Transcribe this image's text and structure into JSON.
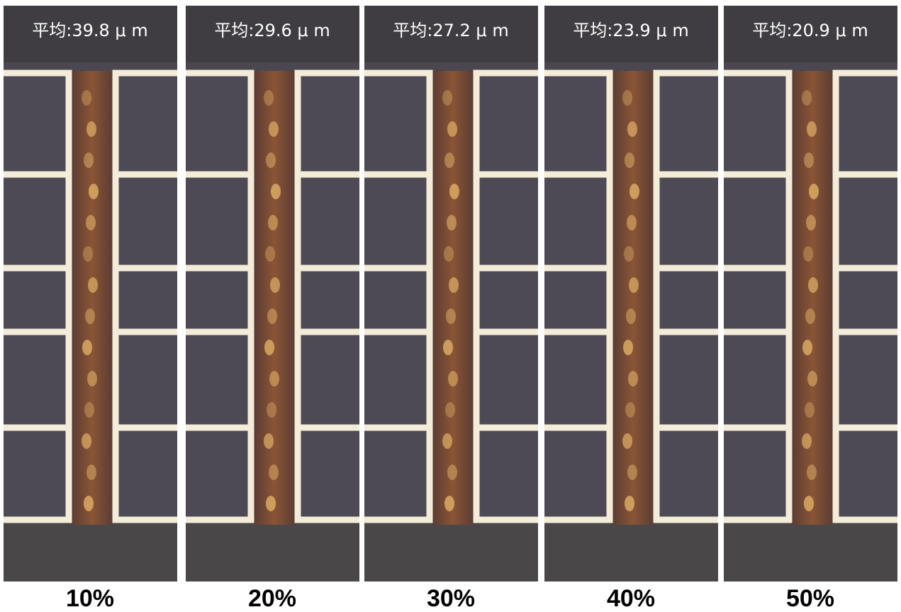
{
  "panels": [
    {
      "average": "平均:39.8 μ m",
      "caption": "10%"
    },
    {
      "average": "平均:29.6 μ m",
      "caption": "20%"
    },
    {
      "average": "平均:27.2 μ m",
      "caption": "30%"
    },
    {
      "average": "平均:23.9 μ m",
      "caption": "40%"
    },
    {
      "average": "平均:20.9 μ m",
      "caption": "50%"
    }
  ]
}
